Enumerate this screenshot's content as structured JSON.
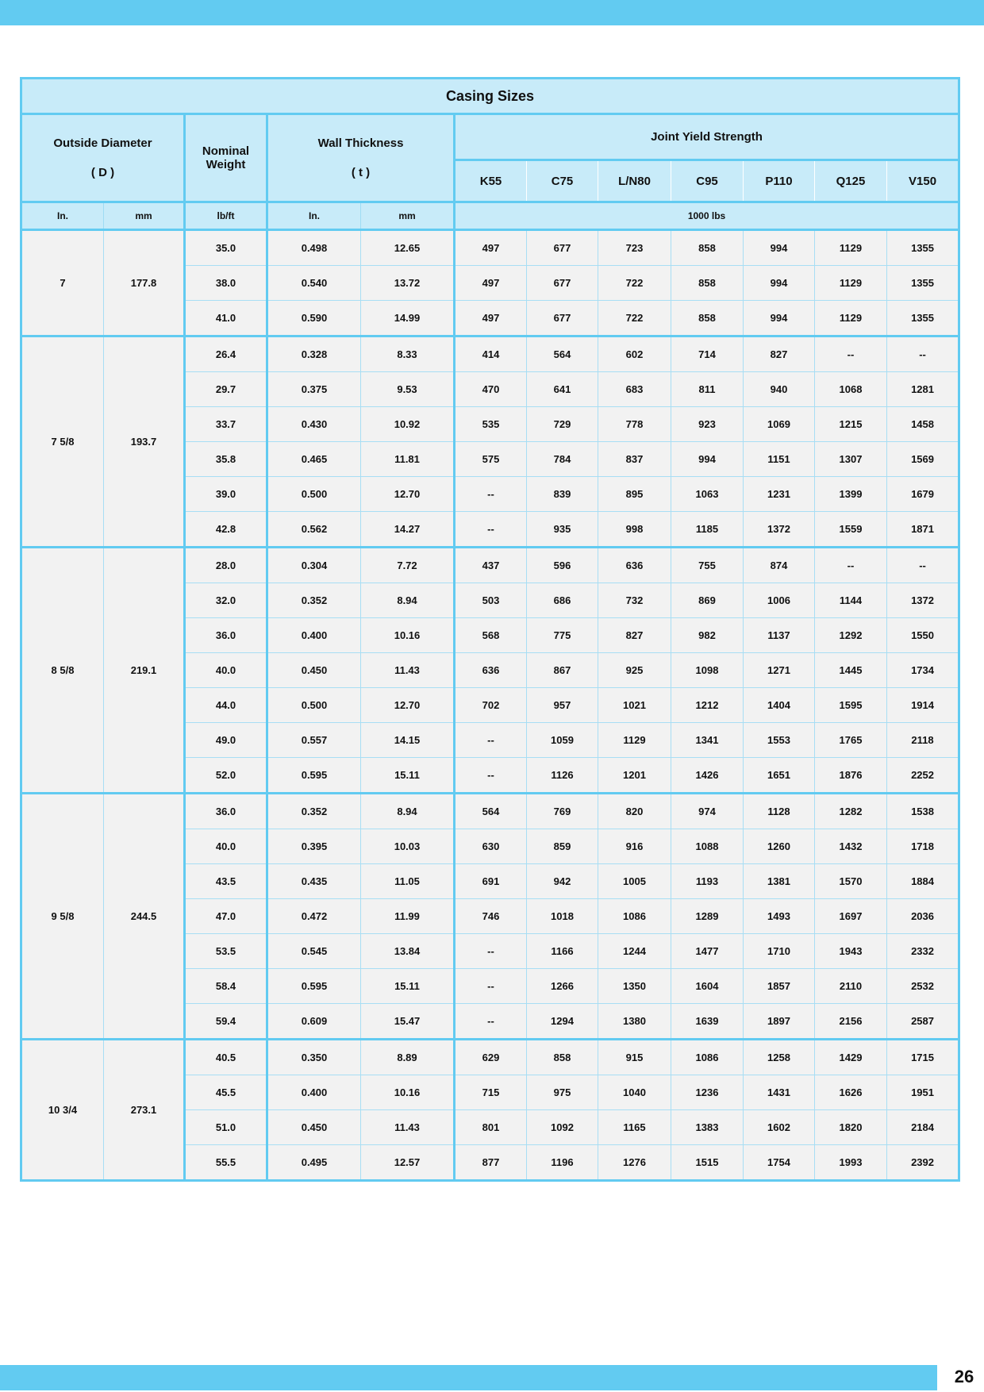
{
  "title": "Casing Sizes",
  "headers": {
    "outside_diameter": "Outside  Diameter",
    "outside_diameter_symbol": "( D )",
    "nominal_weight": "Nominal Weight",
    "wall_thickness": "Wall Thickness",
    "wall_thickness_symbol": "( t )",
    "joint_yield_strength": "Joint Yield Strength",
    "grades": [
      "K55",
      "C75",
      "L/N80",
      "C95",
      "P110",
      "Q125",
      "V150"
    ],
    "units": {
      "od_in": "In.",
      "od_mm": "mm",
      "weight": "lb/ft",
      "wt_in": "In.",
      "wt_mm": "mm",
      "strength": "1000 lbs"
    }
  },
  "groups": [
    {
      "od_in": "7",
      "od_mm": "177.8",
      "rows": [
        [
          "35.0",
          "0.498",
          "12.65",
          "497",
          "677",
          "723",
          "858",
          "994",
          "1129",
          "1355"
        ],
        [
          "38.0",
          "0.540",
          "13.72",
          "497",
          "677",
          "722",
          "858",
          "994",
          "1129",
          "1355"
        ],
        [
          "41.0",
          "0.590",
          "14.99",
          "497",
          "677",
          "722",
          "858",
          "994",
          "1129",
          "1355"
        ]
      ]
    },
    {
      "od_in": "7 5/8",
      "od_mm": "193.7",
      "rows": [
        [
          "26.4",
          "0.328",
          "8.33",
          "414",
          "564",
          "602",
          "714",
          "827",
          "--",
          "--"
        ],
        [
          "29.7",
          "0.375",
          "9.53",
          "470",
          "641",
          "683",
          "811",
          "940",
          "1068",
          "1281"
        ],
        [
          "33.7",
          "0.430",
          "10.92",
          "535",
          "729",
          "778",
          "923",
          "1069",
          "1215",
          "1458"
        ],
        [
          "35.8",
          "0.465",
          "11.81",
          "575",
          "784",
          "837",
          "994",
          "1151",
          "1307",
          "1569"
        ],
        [
          "39.0",
          "0.500",
          "12.70",
          "--",
          "839",
          "895",
          "1063",
          "1231",
          "1399",
          "1679"
        ],
        [
          "42.8",
          "0.562",
          "14.27",
          "--",
          "935",
          "998",
          "1185",
          "1372",
          "1559",
          "1871"
        ]
      ]
    },
    {
      "od_in": "8 5/8",
      "od_mm": "219.1",
      "rows": [
        [
          "28.0",
          "0.304",
          "7.72",
          "437",
          "596",
          "636",
          "755",
          "874",
          "--",
          "--"
        ],
        [
          "32.0",
          "0.352",
          "8.94",
          "503",
          "686",
          "732",
          "869",
          "1006",
          "1144",
          "1372"
        ],
        [
          "36.0",
          "0.400",
          "10.16",
          "568",
          "775",
          "827",
          "982",
          "1137",
          "1292",
          "1550"
        ],
        [
          "40.0",
          "0.450",
          "11.43",
          "636",
          "867",
          "925",
          "1098",
          "1271",
          "1445",
          "1734"
        ],
        [
          "44.0",
          "0.500",
          "12.70",
          "702",
          "957",
          "1021",
          "1212",
          "1404",
          "1595",
          "1914"
        ],
        [
          "49.0",
          "0.557",
          "14.15",
          "--",
          "1059",
          "1129",
          "1341",
          "1553",
          "1765",
          "2118"
        ],
        [
          "52.0",
          "0.595",
          "15.11",
          "--",
          "1126",
          "1201",
          "1426",
          "1651",
          "1876",
          "2252"
        ]
      ]
    },
    {
      "od_in": "9 5/8",
      "od_mm": "244.5",
      "rows": [
        [
          "36.0",
          "0.352",
          "8.94",
          "564",
          "769",
          "820",
          "974",
          "1128",
          "1282",
          "1538"
        ],
        [
          "40.0",
          "0.395",
          "10.03",
          "630",
          "859",
          "916",
          "1088",
          "1260",
          "1432",
          "1718"
        ],
        [
          "43.5",
          "0.435",
          "11.05",
          "691",
          "942",
          "1005",
          "1193",
          "1381",
          "1570",
          "1884"
        ],
        [
          "47.0",
          "0.472",
          "11.99",
          "746",
          "1018",
          "1086",
          "1289",
          "1493",
          "1697",
          "2036"
        ],
        [
          "53.5",
          "0.545",
          "13.84",
          "--",
          "1166",
          "1244",
          "1477",
          "1710",
          "1943",
          "2332"
        ],
        [
          "58.4",
          "0.595",
          "15.11",
          "--",
          "1266",
          "1350",
          "1604",
          "1857",
          "2110",
          "2532"
        ],
        [
          "59.4",
          "0.609",
          "15.47",
          "--",
          "1294",
          "1380",
          "1639",
          "1897",
          "2156",
          "2587"
        ]
      ]
    },
    {
      "od_in": "10 3/4",
      "od_mm": "273.1",
      "rows": [
        [
          "40.5",
          "0.350",
          "8.89",
          "629",
          "858",
          "915",
          "1086",
          "1258",
          "1429",
          "1715"
        ],
        [
          "45.5",
          "0.400",
          "10.16",
          "715",
          "975",
          "1040",
          "1236",
          "1431",
          "1626",
          "1951"
        ],
        [
          "51.0",
          "0.450",
          "11.43",
          "801",
          "1092",
          "1165",
          "1383",
          "1602",
          "1820",
          "2184"
        ],
        [
          "55.5",
          "0.495",
          "12.57",
          "877",
          "1196",
          "1276",
          "1515",
          "1754",
          "1993",
          "2392"
        ]
      ]
    }
  ],
  "page_number": "26",
  "colors": {
    "accent": "#62cbf1",
    "header_bg": "#c8ebf9",
    "cell_bg": "#f2f2f2"
  }
}
